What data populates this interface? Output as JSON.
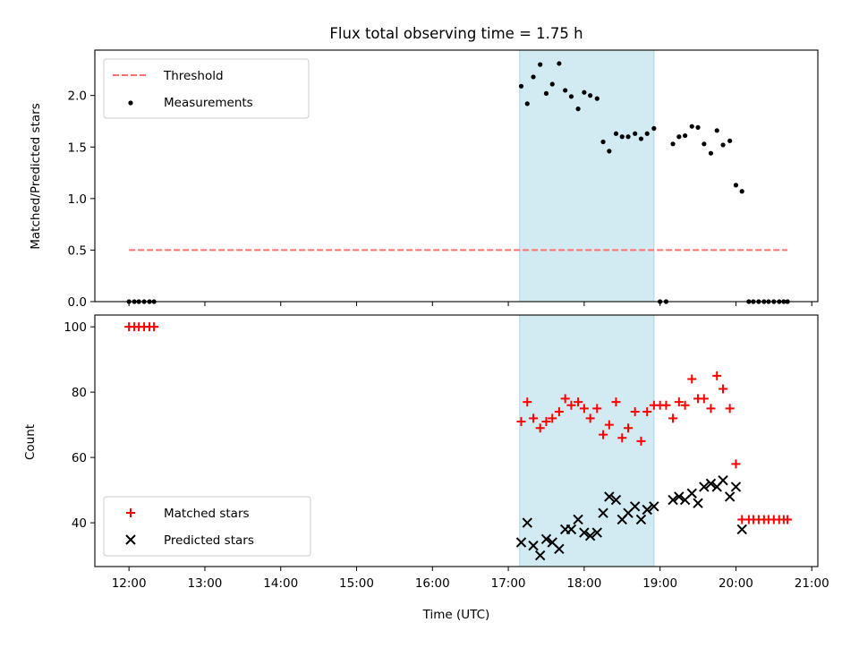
{
  "title": "Flux total observing time = 1.75 h",
  "xlabel": "Time (UTC)",
  "xticks": [
    "12:00",
    "13:00",
    "14:00",
    "15:00",
    "16:00",
    "17:00",
    "18:00",
    "19:00",
    "20:00",
    "21:00"
  ],
  "colors": {
    "threshold": "#ff7070",
    "measurements": "#000000",
    "matched": "#ff0000",
    "predicted": "#000000",
    "span": "#add8e6"
  },
  "chart_data": [
    {
      "type": "scatter",
      "ylabel": "Matched/Predicted stars",
      "xlim": [
        11.55,
        21.08
      ],
      "ylim": [
        0,
        2.44
      ],
      "yticks": [
        "0.0",
        "0.5",
        "1.0",
        "1.5",
        "2.0"
      ],
      "span": [
        17.15,
        18.92
      ],
      "legend": {
        "placement": "top-left",
        "entries": [
          "Threshold",
          "Measurements"
        ]
      },
      "threshold": {
        "name": "Threshold",
        "y": 0.5,
        "x": [
          12.0,
          20.68
        ]
      },
      "series": [
        {
          "name": "Measurements",
          "points": [
            [
              12.0,
              0
            ],
            [
              12.07,
              0
            ],
            [
              12.13,
              0
            ],
            [
              12.2,
              0
            ],
            [
              12.27,
              0
            ],
            [
              12.33,
              0
            ],
            [
              17.17,
              2.09
            ],
            [
              17.25,
              1.92
            ],
            [
              17.33,
              2.18
            ],
            [
              17.42,
              2.3
            ],
            [
              17.5,
              2.02
            ],
            [
              17.58,
              2.11
            ],
            [
              17.67,
              2.31
            ],
            [
              17.75,
              2.05
            ],
            [
              17.83,
              1.99
            ],
            [
              17.92,
              1.87
            ],
            [
              18.0,
              2.03
            ],
            [
              18.08,
              2.0
            ],
            [
              18.17,
              1.97
            ],
            [
              18.25,
              1.55
            ],
            [
              18.33,
              1.46
            ],
            [
              18.42,
              1.63
            ],
            [
              18.5,
              1.6
            ],
            [
              18.58,
              1.6
            ],
            [
              18.67,
              1.63
            ],
            [
              18.75,
              1.58
            ],
            [
              18.83,
              1.63
            ],
            [
              18.92,
              1.68
            ],
            [
              19.0,
              0
            ],
            [
              19.08,
              0
            ],
            [
              19.17,
              1.53
            ],
            [
              19.25,
              1.6
            ],
            [
              19.33,
              1.61
            ],
            [
              19.42,
              1.7
            ],
            [
              19.5,
              1.69
            ],
            [
              19.58,
              1.53
            ],
            [
              19.67,
              1.44
            ],
            [
              19.75,
              1.66
            ],
            [
              19.83,
              1.52
            ],
            [
              19.92,
              1.56
            ],
            [
              20.0,
              1.13
            ],
            [
              20.08,
              1.07
            ],
            [
              20.17,
              0
            ],
            [
              20.23,
              0
            ],
            [
              20.3,
              0
            ],
            [
              20.37,
              0
            ],
            [
              20.43,
              0
            ],
            [
              20.5,
              0
            ],
            [
              20.57,
              0
            ],
            [
              20.63,
              0
            ],
            [
              20.68,
              0
            ]
          ]
        }
      ]
    },
    {
      "type": "scatter",
      "ylabel": "Count",
      "xlim": [
        11.55,
        21.08
      ],
      "ylim": [
        26.6,
        103.6
      ],
      "yticks": [
        "40",
        "60",
        "80",
        "100"
      ],
      "span": [
        17.15,
        18.92
      ],
      "legend": {
        "placement": "bottom-left",
        "entries": [
          "Matched stars",
          "Predicted stars"
        ]
      },
      "series": [
        {
          "name": "Matched stars",
          "marker": "+",
          "points": [
            [
              12.0,
              100
            ],
            [
              12.07,
              100
            ],
            [
              12.13,
              100
            ],
            [
              12.2,
              100
            ],
            [
              12.27,
              100
            ],
            [
              12.33,
              100
            ],
            [
              17.17,
              71
            ],
            [
              17.25,
              77
            ],
            [
              17.33,
              72
            ],
            [
              17.42,
              69
            ],
            [
              17.5,
              71
            ],
            [
              17.58,
              72
            ],
            [
              17.67,
              74
            ],
            [
              17.75,
              78
            ],
            [
              17.83,
              76
            ],
            [
              17.92,
              77
            ],
            [
              18.0,
              75
            ],
            [
              18.08,
              72
            ],
            [
              18.17,
              75
            ],
            [
              18.25,
              67
            ],
            [
              18.33,
              70
            ],
            [
              18.42,
              77
            ],
            [
              18.5,
              66
            ],
            [
              18.58,
              69
            ],
            [
              18.67,
              74
            ],
            [
              18.75,
              65
            ],
            [
              18.83,
              74
            ],
            [
              18.92,
              76
            ],
            [
              19.0,
              76
            ],
            [
              19.08,
              76
            ],
            [
              19.17,
              72
            ],
            [
              19.25,
              77
            ],
            [
              19.33,
              76
            ],
            [
              19.42,
              84
            ],
            [
              19.5,
              78
            ],
            [
              19.58,
              78
            ],
            [
              19.67,
              75
            ],
            [
              19.75,
              85
            ],
            [
              19.83,
              81
            ],
            [
              19.92,
              75
            ],
            [
              20.0,
              58
            ],
            [
              20.08,
              41
            ],
            [
              20.17,
              41
            ],
            [
              20.23,
              41
            ],
            [
              20.3,
              41
            ],
            [
              20.37,
              41
            ],
            [
              20.43,
              41
            ],
            [
              20.5,
              41
            ],
            [
              20.57,
              41
            ],
            [
              20.63,
              41
            ],
            [
              20.68,
              41
            ]
          ]
        },
        {
          "name": "Predicted stars",
          "marker": "x",
          "points": [
            [
              17.17,
              34
            ],
            [
              17.25,
              40
            ],
            [
              17.33,
              33
            ],
            [
              17.42,
              30
            ],
            [
              17.5,
              35
            ],
            [
              17.58,
              34
            ],
            [
              17.67,
              32
            ],
            [
              17.75,
              38
            ],
            [
              17.83,
              38
            ],
            [
              17.92,
              41
            ],
            [
              18.0,
              37
            ],
            [
              18.08,
              36
            ],
            [
              18.17,
              37
            ],
            [
              18.25,
              43
            ],
            [
              18.33,
              48
            ],
            [
              18.42,
              47
            ],
            [
              18.5,
              41
            ],
            [
              18.58,
              43
            ],
            [
              18.67,
              45
            ],
            [
              18.75,
              41
            ],
            [
              18.83,
              44
            ],
            [
              18.92,
              45
            ],
            [
              19.17,
              47
            ],
            [
              19.25,
              48
            ],
            [
              19.33,
              47
            ],
            [
              19.42,
              49
            ],
            [
              19.5,
              46
            ],
            [
              19.58,
              51
            ],
            [
              19.67,
              52
            ],
            [
              19.75,
              51
            ],
            [
              19.83,
              53
            ],
            [
              19.92,
              48
            ],
            [
              20.0,
              51
            ],
            [
              20.08,
              38
            ]
          ]
        }
      ]
    }
  ]
}
